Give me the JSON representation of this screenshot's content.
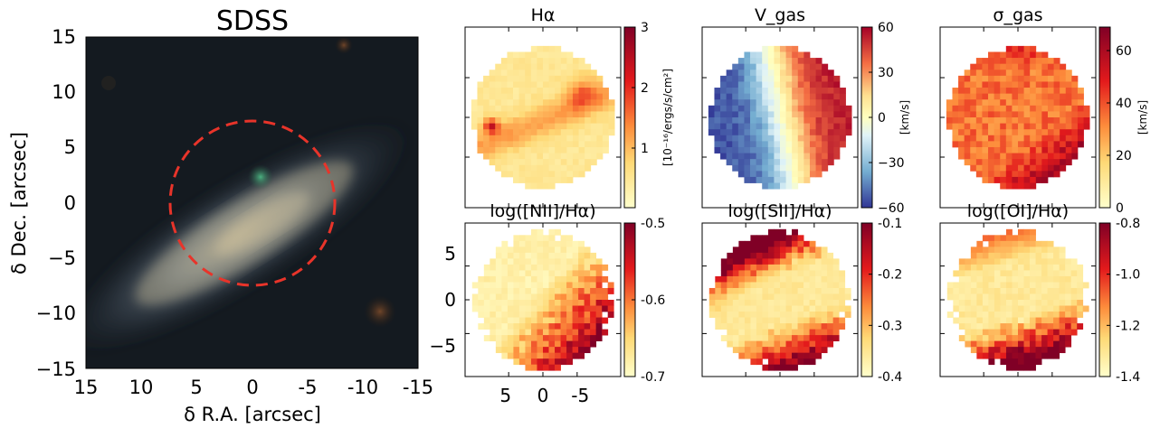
{
  "figure": {
    "sdss": {
      "title": "SDSS",
      "xlabel": "δ R.A. [arcsec]",
      "ylabel": "δ Dec. [arcsec]",
      "xticks": [
        "15",
        "10",
        "5",
        "0",
        "-5",
        "-10",
        "-15"
      ],
      "yticks": [
        "15",
        "10",
        "5",
        "0",
        "−5",
        "−10",
        "−15"
      ]
    },
    "maps": [
      {
        "title": "Hα",
        "cbar_label": "[10⁻¹⁶/ergs/s/cm²]",
        "cbar_ticks": [
          "3",
          "2",
          "1"
        ],
        "cmap": "YlOrRd"
      },
      {
        "title": "V_gas",
        "cbar_label": "[km/s]",
        "cbar_ticks": [
          "60",
          "30",
          "0",
          "−30",
          "−60"
        ],
        "cmap": "RdYlBu_r"
      },
      {
        "title": "σ_gas",
        "cbar_label": "[km/s]",
        "cbar_ticks": [
          "60",
          "40",
          "20",
          "0"
        ],
        "cmap": "YlOrRd"
      },
      {
        "title": "log([NII]/Hα)",
        "cbar_label": "",
        "cbar_ticks": [
          "-0.5",
          "-0.6",
          "-0.7"
        ],
        "cmap": "YlOrRd"
      },
      {
        "title": "log([SII]/Hα)",
        "cbar_label": "",
        "cbar_ticks": [
          "-0.1",
          "-0.2",
          "-0.3",
          "-0.4"
        ],
        "cmap": "YlOrRd"
      },
      {
        "title": "log([OI]/Hα)",
        "cbar_label": "",
        "cbar_ticks": [
          "-0.8",
          "-1.0",
          "-1.2",
          "-1.4"
        ],
        "cmap": "YlOrRd"
      }
    ],
    "shared_axes": {
      "y_ticks": [
        "5",
        "0",
        "−5"
      ],
      "x_ticks": [
        "5",
        "0",
        "-5"
      ]
    }
  },
  "chart_data": [
    {
      "type": "heatmap",
      "title": "SDSS",
      "xlabel": "δ R.A. [arcsec]",
      "ylabel": "δ Dec. [arcsec]",
      "xlim": [
        15,
        -15
      ],
      "ylim": [
        -15,
        15
      ],
      "overlay": {
        "shape": "circle",
        "center": [
          0,
          0
        ],
        "radius": 7.5,
        "style": "dashed",
        "color": "#e8342a"
      }
    },
    {
      "type": "heatmap",
      "title": "Hα",
      "colorbar": {
        "min": 0,
        "max": 3,
        "label": "[10⁻¹⁶/ergs/s/cm²]"
      }
    },
    {
      "type": "heatmap",
      "title": "V_gas",
      "colorbar": {
        "min": -60,
        "max": 60,
        "label": "[km/s]"
      }
    },
    {
      "type": "heatmap",
      "title": "σ_gas",
      "colorbar": {
        "min": 0,
        "max": 70,
        "label": "[km/s]"
      }
    },
    {
      "type": "heatmap",
      "title": "log([NII]/Hα)",
      "xlim": [
        10,
        -10
      ],
      "ylim": [
        -8,
        8
      ],
      "colorbar": {
        "min": -0.78,
        "max": -0.48
      }
    },
    {
      "type": "heatmap",
      "title": "log([SII]/Hα)",
      "colorbar": {
        "min": -0.4,
        "max": -0.08
      }
    },
    {
      "type": "heatmap",
      "title": "log([OI]/Hα)",
      "colorbar": {
        "min": -1.5,
        "max": -0.78
      }
    }
  ]
}
